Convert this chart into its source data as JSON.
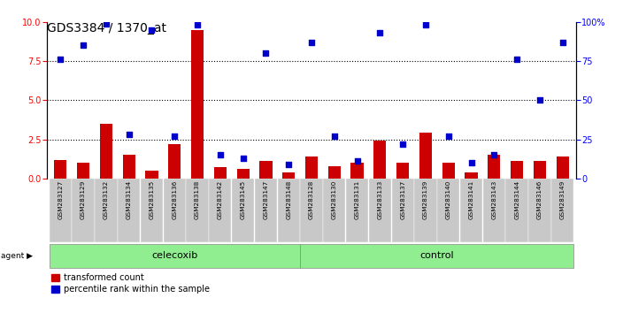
{
  "title": "GDS3384 / 1370_at",
  "samples": [
    "GSM283127",
    "GSM283129",
    "GSM283132",
    "GSM283134",
    "GSM283135",
    "GSM283136",
    "GSM283138",
    "GSM283142",
    "GSM283145",
    "GSM283147",
    "GSM283148",
    "GSM283128",
    "GSM283130",
    "GSM283131",
    "GSM283133",
    "GSM283137",
    "GSM283139",
    "GSM283140",
    "GSM283141",
    "GSM283143",
    "GSM283144",
    "GSM283146",
    "GSM283149"
  ],
  "red_values": [
    1.2,
    1.0,
    3.5,
    1.5,
    0.5,
    2.2,
    9.5,
    0.7,
    0.6,
    1.1,
    0.4,
    1.4,
    0.8,
    1.0,
    2.4,
    1.0,
    2.9,
    1.0,
    0.4,
    1.5,
    1.1,
    1.1,
    1.4
  ],
  "blue_values": [
    7.6,
    8.5,
    9.9,
    2.8,
    9.5,
    2.7,
    9.8,
    1.5,
    1.3,
    8.0,
    0.9,
    8.7,
    2.7,
    1.1,
    9.3,
    2.2,
    9.8,
    2.7,
    1.0,
    1.5,
    7.6,
    5.0,
    8.7
  ],
  "celecoxib_samples": 11,
  "control_samples": 12,
  "ylim_left": [
    0,
    10
  ],
  "ylim_right": [
    0,
    100
  ],
  "yticks_left": [
    0,
    2.5,
    5,
    7.5,
    10
  ],
  "yticks_right": [
    0,
    25,
    50,
    75,
    100
  ],
  "hlines": [
    2.5,
    5.0,
    7.5
  ],
  "bar_color": "#CC0000",
  "dot_color": "#0000CC",
  "legend_red": "transformed count",
  "legend_blue": "percentile rank within the sample",
  "title_fontsize": 10,
  "tick_fontsize": 7,
  "label_fontsize": 7.5
}
